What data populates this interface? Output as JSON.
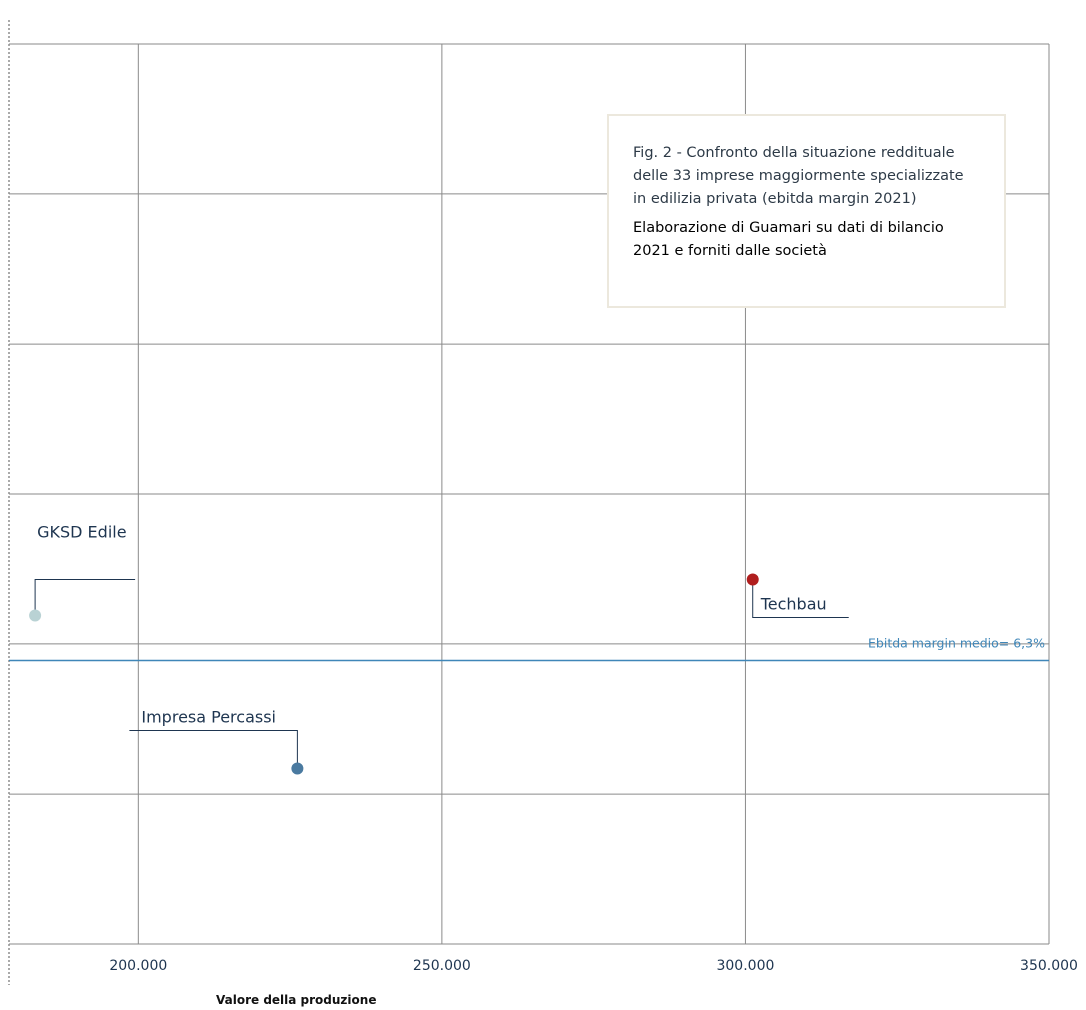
{
  "colors": {
    "grid": "#8a8a8a",
    "reference_line": "#3f86b8",
    "label_text": "#1e3550",
    "source_text": "#4a8fb6"
  },
  "note": {
    "title": "Fig. 2 - Confronto della situazione reddituale delle 33 imprese maggiormente specializzate in edilizia privata (ebitda margin 2021)",
    "source": "Elaborazione di Guamari su dati di bilancio 2021 e forniti dalle società"
  },
  "chart_data": {
    "type": "scatter",
    "title": "Fig. 2 - Confronto della situazione reddituale delle 33 imprese maggiormente specializzate in edilizia privata (ebitda margin 2021)",
    "xlabel": "Valore della produzione",
    "ylabel": "",
    "xlim": [
      178700,
      350000
    ],
    "ylim": [
      0,
      20
    ],
    "x_ticks": [
      200000,
      250000,
      300000,
      350000
    ],
    "x_tick_labels": [
      "200.000",
      "250.000",
      "300.000",
      "350.000"
    ],
    "y_gridlines": [
      0,
      3.33,
      6.67,
      10,
      13.33,
      16.67,
      20
    ],
    "grid": true,
    "reference_line": {
      "label": "Ebitda margin medio= 6,3%",
      "value": 6.3
    },
    "points": [
      {
        "name": "GKSD Edile",
        "x": 183000,
        "y": 7.3,
        "color": "#b9d2d4"
      },
      {
        "name": "Techbau",
        "x": 301200,
        "y": 8.1,
        "color": "#b01e1e"
      },
      {
        "name": "Impresa Percassi",
        "x": 226200,
        "y": 3.9,
        "color": "#4a7aa0"
      }
    ]
  }
}
